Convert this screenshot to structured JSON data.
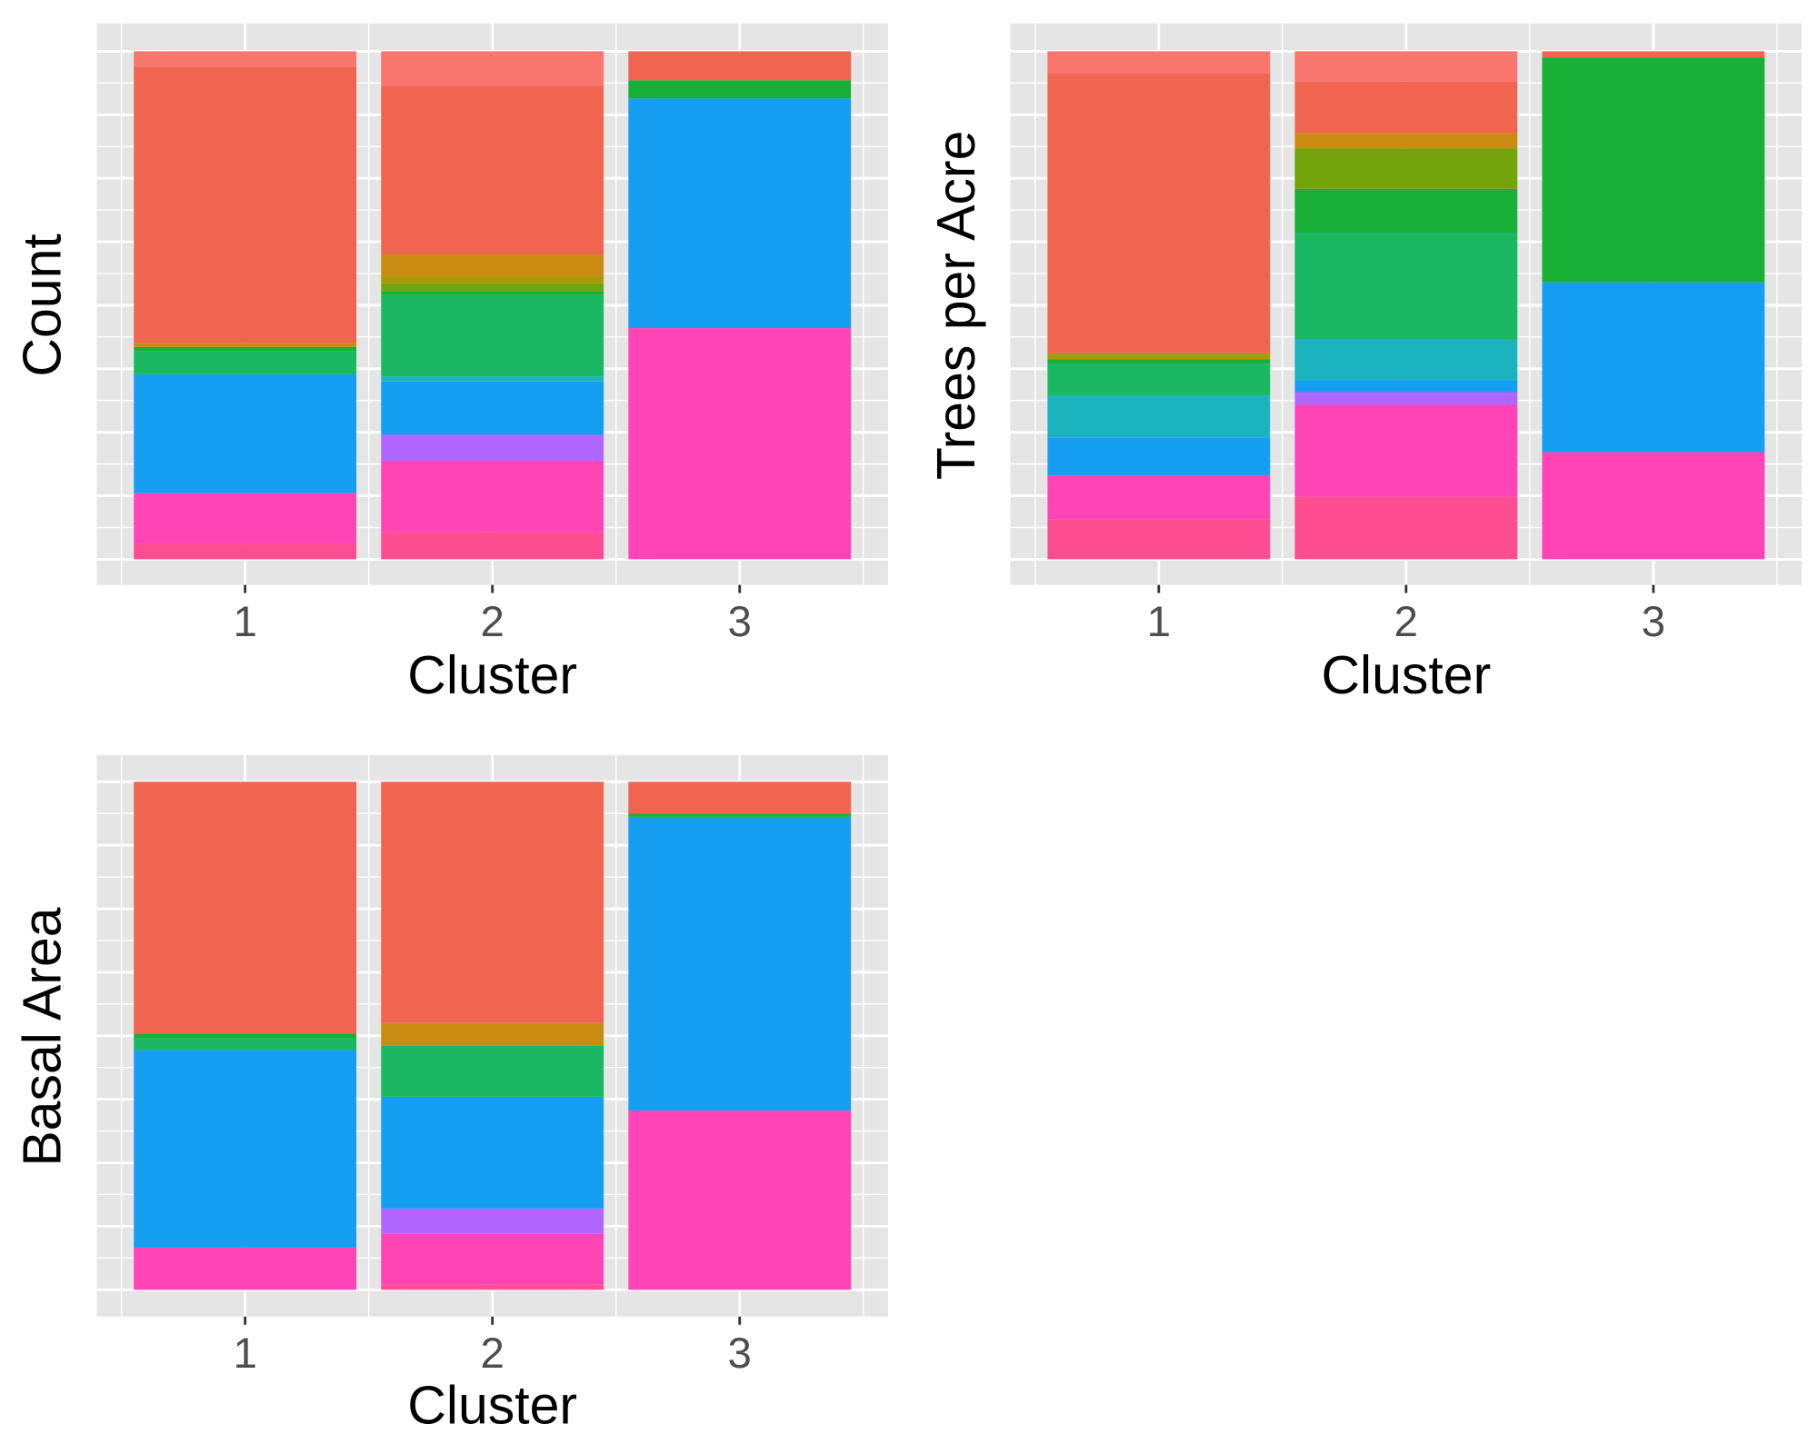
{
  "colors": {
    "panel_background": "#E5E5E5",
    "gridline": "#FFFFFF",
    "tick": "#333333",
    "tick_label": "#4D4D4D",
    "axis_title": "#000000",
    "palette": {
      "s01": "#F8766D",
      "s02": "#F0654F",
      "s03": "#C98C10",
      "s04": "#A8990A",
      "s05": "#74A40B",
      "s06": "#18B036",
      "s07": "#1AB862",
      "s08": "#1BB3BE",
      "s09": "#169FF2",
      "s10": "#B066FF",
      "s11": "#FF44B6",
      "s12": "#FF4D92"
    }
  },
  "chart_data": [
    {
      "type": "bar",
      "stacked": "fill",
      "xlabel": "Cluster",
      "ylabel": "Count",
      "categories": [
        "1",
        "2",
        "3"
      ],
      "y_tick_labels": false,
      "grid": true,
      "legend": "none",
      "series": [
        {
          "color": "s12",
          "values": [
            0.031,
            0.053,
            0.0
          ]
        },
        {
          "color": "s11",
          "values": [
            0.099,
            0.14,
            0.455
          ]
        },
        {
          "color": "s10",
          "values": [
            0.0,
            0.052,
            0.0
          ]
        },
        {
          "color": "s09",
          "values": [
            0.234,
            0.105,
            0.452
          ]
        },
        {
          "color": "s08",
          "values": [
            0.0,
            0.01,
            0.0
          ]
        },
        {
          "color": "s07",
          "values": [
            0.046,
            0.16,
            0.0
          ]
        },
        {
          "color": "s06",
          "values": [
            0.008,
            0.008,
            0.036
          ]
        },
        {
          "color": "s05",
          "values": [
            0.0,
            0.015,
            0.0
          ]
        },
        {
          "color": "s04",
          "values": [
            0.0,
            0.014,
            0.0
          ]
        },
        {
          "color": "s03",
          "values": [
            0.008,
            0.043,
            0.0
          ]
        },
        {
          "color": "s02",
          "values": [
            0.544,
            0.332,
            0.057
          ]
        },
        {
          "color": "s01",
          "values": [
            0.03,
            0.068,
            0.0
          ]
        }
      ]
    },
    {
      "type": "bar",
      "stacked": "fill",
      "xlabel": "Cluster",
      "ylabel": "Trees per Acre",
      "categories": [
        "1",
        "2",
        "3"
      ],
      "y_tick_labels": false,
      "grid": true,
      "legend": "none",
      "series": [
        {
          "color": "s12",
          "values": [
            0.078,
            0.123,
            0.0
          ]
        },
        {
          "color": "s11",
          "values": [
            0.087,
            0.181,
            0.211
          ]
        },
        {
          "color": "s10",
          "values": [
            0.0,
            0.025,
            0.0
          ]
        },
        {
          "color": "s09",
          "values": [
            0.075,
            0.024,
            0.334
          ]
        },
        {
          "color": "s08",
          "values": [
            0.082,
            0.079,
            0.0
          ]
        },
        {
          "color": "s07",
          "values": [
            0.063,
            0.211,
            0.0
          ]
        },
        {
          "color": "s06",
          "values": [
            0.009,
            0.086,
            0.443
          ]
        },
        {
          "color": "s05",
          "values": [
            0.0,
            0.08,
            0.0
          ]
        },
        {
          "color": "s04",
          "values": [
            0.012,
            0.0,
            0.0
          ]
        },
        {
          "color": "s03",
          "values": [
            0.0,
            0.03,
            0.0
          ]
        },
        {
          "color": "s02",
          "values": [
            0.55,
            0.101,
            0.012
          ]
        },
        {
          "color": "s01",
          "values": [
            0.044,
            0.06,
            0.0
          ]
        }
      ]
    },
    {
      "type": "bar",
      "stacked": "fill",
      "xlabel": "Cluster",
      "ylabel": "Basal Area",
      "categories": [
        "1",
        "2",
        "3"
      ],
      "y_tick_labels": false,
      "grid": true,
      "legend": "none",
      "series": [
        {
          "color": "s12",
          "values": [
            0.0,
            0.01,
            0.0
          ]
        },
        {
          "color": "s11",
          "values": [
            0.083,
            0.1,
            0.353
          ]
        },
        {
          "color": "s10",
          "values": [
            0.0,
            0.05,
            0.0
          ]
        },
        {
          "color": "s09",
          "values": [
            0.389,
            0.22,
            0.578
          ]
        },
        {
          "color": "s07",
          "values": [
            0.024,
            0.1,
            0.0
          ]
        },
        {
          "color": "s06",
          "values": [
            0.008,
            0.0,
            0.006
          ]
        },
        {
          "color": "s03",
          "values": [
            0.0,
            0.045,
            0.0
          ]
        },
        {
          "color": "s02",
          "values": [
            0.496,
            0.475,
            0.063
          ]
        }
      ]
    }
  ]
}
